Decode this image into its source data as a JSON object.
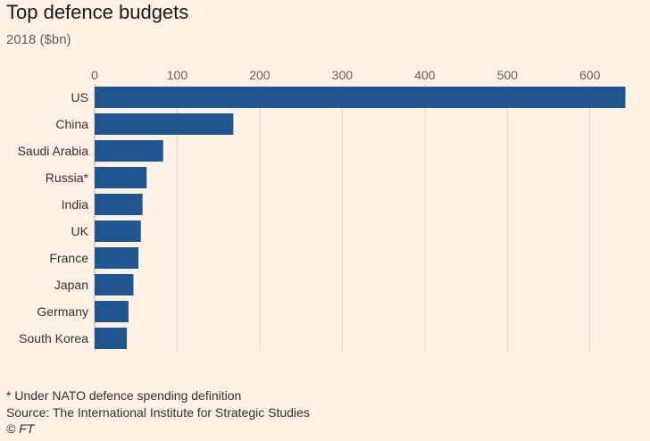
{
  "header": {
    "title": "Top defence budgets",
    "subtitle": "2018 ($bn)"
  },
  "footer": {
    "note": "* Under NATO defence spending definition",
    "source": "Source: The International Institute for Strategic Studies",
    "credit": "© FT"
  },
  "colors": {
    "bar": "#1f5690",
    "grid": "#e3d6cb",
    "axis": "#b8ada4"
  },
  "chart_data": {
    "type": "bar",
    "orientation": "horizontal",
    "title": "Top defence budgets",
    "subtitle": "2018 ($bn)",
    "categories": [
      "US",
      "China",
      "Saudi Arabia",
      "Russia*",
      "India",
      "UK",
      "France",
      "Japan",
      "Germany",
      "South Korea"
    ],
    "values": [
      643,
      168,
      83,
      63,
      58,
      56,
      53,
      47,
      41,
      39
    ],
    "xlim": [
      0,
      650
    ],
    "xticks": [
      0,
      100,
      200,
      300,
      400,
      500,
      600
    ],
    "xlabel": "",
    "ylabel": "",
    "grid": true,
    "axis_position": "top"
  }
}
